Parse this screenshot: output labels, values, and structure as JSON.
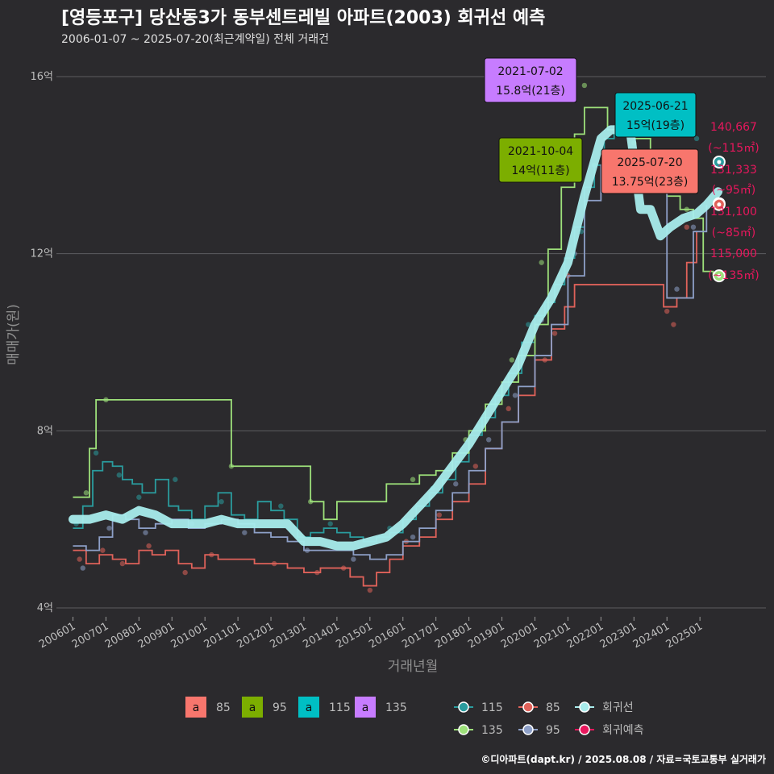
{
  "title": "[영등포구] 당산동3가 동부센트레빌 아파트(2003) 회귀선 예측",
  "subtitle": "2006-01-07 ~ 2025-07-20(최근계약일) 전체 거래건",
  "footer": "©디아파트(dapt.kr) / 2025.08.08 / 자료=국토교통부 실거래가",
  "colors": {
    "background": "#2b2a2d",
    "grid": "#5c5c60",
    "s85": "#f8766d",
    "s95": "#7cae00",
    "s115": "#00bfc4",
    "s135": "#c77cff",
    "l115": "#2a9c9e",
    "l135": "#9de07a",
    "l85": "#e0625a",
    "l95": "#8ea0c8",
    "regression": "#a8ecec",
    "forecast": "#e8175d"
  },
  "chart_data": {
    "type": "line",
    "title": "[영등포구] 당산동3가 동부센트레빌 아파트(2003) 회귀선 예측",
    "xlabel": "거래년월",
    "ylabel": "매매가(원)",
    "xlim": [
      2005.5,
      2027.0
    ],
    "ylim": [
      3.8,
      16.6
    ],
    "y_unit": "억",
    "y_ticks": [
      4,
      8,
      12,
      16
    ],
    "y_tick_labels": [
      "4억",
      "8억",
      "12억",
      "16억"
    ],
    "x_tick_values": [
      2006,
      2007,
      2008,
      2009,
      2010,
      2011,
      2012,
      2013,
      2014,
      2015,
      2016,
      2017,
      2018,
      2019,
      2020,
      2021,
      2022,
      2023,
      2024,
      2025
    ],
    "x_tick_labels": [
      "200601",
      "200701",
      "200801",
      "200901",
      "201001",
      "201101",
      "201201",
      "201301",
      "201401",
      "201501",
      "201601",
      "201701",
      "201801",
      "201901",
      "202001",
      "202101",
      "202201",
      "202301",
      "202401",
      "202501"
    ],
    "series": [
      {
        "name": "115",
        "key": "l115",
        "x": [
          2006.0,
          2006.3,
          2006.6,
          2006.9,
          2007.2,
          2007.5,
          2007.8,
          2008.1,
          2008.5,
          2008.9,
          2009.2,
          2009.6,
          2010.0,
          2010.4,
          2010.8,
          2011.2,
          2011.6,
          2012.0,
          2012.4,
          2012.8,
          2013.2,
          2013.6,
          2014.0,
          2014.4,
          2014.8,
          2015.2,
          2015.6,
          2016.0,
          2016.4,
          2016.8,
          2017.2,
          2017.6,
          2018.0,
          2018.4,
          2018.8,
          2019.2,
          2019.6,
          2020.0,
          2020.3,
          2020.6,
          2020.9,
          2021.2,
          2021.5,
          2021.8,
          2022.1,
          2022.4
        ],
        "y": [
          5.8,
          6.3,
          7.1,
          7.3,
          7.2,
          6.9,
          6.8,
          6.6,
          6.9,
          6.3,
          6.2,
          6.0,
          6.3,
          6.6,
          6.1,
          6.0,
          6.4,
          6.2,
          6.0,
          5.6,
          5.7,
          5.8,
          5.7,
          5.6,
          5.5,
          5.6,
          5.7,
          6.0,
          6.3,
          6.6,
          6.9,
          7.3,
          7.9,
          8.3,
          8.8,
          9.3,
          10.0,
          10.6,
          10.9,
          11.3,
          11.9,
          12.6,
          13.5,
          14.0,
          14.6,
          14.9
        ]
      },
      {
        "name": "135",
        "key": "l135",
        "x": [
          2006.0,
          2006.3,
          2006.5,
          2006.7,
          2007.0,
          2010.8,
          2011.3,
          2013.2,
          2013.6,
          2014.0,
          2015.5,
          2016.0,
          2016.5,
          2017.0,
          2017.5,
          2018.0,
          2018.5,
          2019.0,
          2019.5,
          2020.0,
          2020.4,
          2020.8,
          2021.2,
          2021.5,
          2021.8,
          2022.2,
          2023.0,
          2023.5,
          2024.0,
          2024.4,
          2024.8,
          2025.1,
          2025.4
        ],
        "y": [
          6.5,
          6.5,
          7.6,
          8.7,
          8.7,
          7.2,
          7.2,
          6.4,
          6.0,
          6.4,
          6.8,
          6.8,
          7.0,
          7.1,
          7.5,
          8.0,
          8.6,
          9.1,
          9.7,
          10.4,
          12.1,
          13.5,
          14.7,
          15.3,
          15.3,
          14.8,
          14.6,
          14.2,
          13.3,
          13.0,
          12.8,
          11.6,
          11.5
        ]
      },
      {
        "name": "85",
        "key": "l85",
        "x": [
          2006.0,
          2006.4,
          2006.8,
          2007.2,
          2007.6,
          2008.0,
          2008.4,
          2008.8,
          2009.2,
          2009.6,
          2010.0,
          2010.4,
          2011.0,
          2011.5,
          2012.0,
          2012.5,
          2013.0,
          2013.5,
          2014.0,
          2014.4,
          2014.8,
          2015.2,
          2015.6,
          2016.0,
          2016.5,
          2017.0,
          2017.5,
          2018.0,
          2018.5,
          2019.0,
          2019.5,
          2020.0,
          2020.5,
          2020.9,
          2021.2,
          2023.9,
          2024.3,
          2024.6,
          2024.9
        ],
        "y": [
          5.3,
          5.0,
          5.2,
          5.1,
          5.0,
          5.3,
          5.2,
          5.3,
          5.0,
          4.9,
          5.2,
          5.1,
          5.1,
          5.0,
          5.0,
          4.9,
          4.8,
          4.9,
          4.9,
          4.7,
          4.5,
          4.8,
          5.1,
          5.4,
          5.6,
          6.0,
          6.4,
          6.8,
          7.6,
          8.2,
          8.8,
          9.6,
          10.3,
          10.8,
          11.3,
          10.8,
          11.0,
          11.8,
          12.5
        ]
      },
      {
        "name": "95",
        "key": "l95",
        "x": [
          2006.0,
          2006.4,
          2006.8,
          2007.2,
          2007.6,
          2008.0,
          2008.5,
          2009.0,
          2009.5,
          2010.0,
          2010.5,
          2011.0,
          2011.5,
          2012.0,
          2012.5,
          2013.0,
          2013.5,
          2014.0,
          2014.5,
          2015.0,
          2015.5,
          2016.0,
          2016.5,
          2017.0,
          2017.5,
          2018.0,
          2018.5,
          2019.0,
          2019.5,
          2020.0,
          2020.5,
          2021.0,
          2021.5,
          2022.0,
          2023.0,
          2024.0,
          2024.4,
          2024.8,
          2025.2
        ],
        "y": [
          5.4,
          5.3,
          5.6,
          6.1,
          6.0,
          5.8,
          5.9,
          6.0,
          5.8,
          5.9,
          6.0,
          5.9,
          5.7,
          5.6,
          5.5,
          5.3,
          5.3,
          5.3,
          5.2,
          5.1,
          5.2,
          5.5,
          5.8,
          6.2,
          6.6,
          7.1,
          7.6,
          8.2,
          9.0,
          9.7,
          10.4,
          11.5,
          13.2,
          14.0,
          14.2,
          11.0,
          11.0,
          12.5,
          13.1
        ]
      },
      {
        "name": "회귀선",
        "key": "regression",
        "x": [
          2006.0,
          2006.5,
          2007.0,
          2007.5,
          2008.0,
          2008.5,
          2009.0,
          2009.5,
          2010.0,
          2010.5,
          2011.0,
          2011.5,
          2012.0,
          2012.5,
          2013.0,
          2013.5,
          2014.0,
          2014.5,
          2015.0,
          2015.5,
          2016.0,
          2016.5,
          2017.0,
          2017.5,
          2018.0,
          2018.5,
          2019.0,
          2019.5,
          2020.0,
          2020.5,
          2021.0,
          2021.5,
          2022.0,
          2022.3,
          2022.6,
          2022.9,
          2023.2,
          2023.5,
          2023.8,
          2024.1,
          2024.5,
          2024.9,
          2025.2,
          2025.55
        ],
        "y": [
          6.0,
          6.0,
          6.1,
          6.0,
          6.2,
          6.1,
          5.9,
          5.9,
          5.9,
          6.0,
          5.9,
          5.9,
          5.9,
          5.9,
          5.5,
          5.5,
          5.4,
          5.4,
          5.5,
          5.6,
          5.9,
          6.3,
          6.7,
          7.2,
          7.7,
          8.3,
          8.9,
          9.5,
          10.4,
          11.0,
          11.8,
          13.3,
          14.6,
          14.8,
          14.8,
          14.7,
          13.0,
          13.0,
          12.4,
          12.6,
          12.8,
          12.9,
          13.1,
          13.4
        ]
      }
    ],
    "scatter_points": {
      "85": [
        [
          2006.2,
          5.1
        ],
        [
          2006.9,
          5.3
        ],
        [
          2007.5,
          5.0
        ],
        [
          2008.3,
          5.4
        ],
        [
          2009.4,
          4.8
        ],
        [
          2010.2,
          5.2
        ],
        [
          2012.1,
          5.0
        ],
        [
          2013.4,
          4.8
        ],
        [
          2014.2,
          4.9
        ],
        [
          2015.0,
          4.4
        ],
        [
          2016.1,
          5.5
        ],
        [
          2017.1,
          6.1
        ],
        [
          2018.2,
          7.2
        ],
        [
          2019.2,
          8.5
        ],
        [
          2020.3,
          9.6
        ],
        [
          2020.6,
          10.2
        ],
        [
          2021.0,
          11.5
        ],
        [
          2024.0,
          10.7
        ],
        [
          2024.2,
          10.4
        ],
        [
          2024.6,
          12.6
        ]
      ],
      "95": [
        [
          2006.3,
          4.9
        ],
        [
          2007.1,
          5.8
        ],
        [
          2008.2,
          5.7
        ],
        [
          2009.6,
          5.9
        ],
        [
          2011.2,
          5.7
        ],
        [
          2013.1,
          5.3
        ],
        [
          2014.5,
          5.1
        ],
        [
          2016.3,
          5.6
        ],
        [
          2017.6,
          6.8
        ],
        [
          2018.6,
          7.8
        ],
        [
          2019.4,
          8.8
        ],
        [
          2020.2,
          10.5
        ],
        [
          2021.2,
          12.0
        ],
        [
          2024.3,
          11.2
        ],
        [
          2024.8,
          12.6
        ]
      ],
      "115": [
        [
          2006.1,
          5.9
        ],
        [
          2006.7,
          7.5
        ],
        [
          2007.4,
          7.0
        ],
        [
          2008.0,
          6.5
        ],
        [
          2009.1,
          6.9
        ],
        [
          2010.5,
          6.4
        ],
        [
          2012.3,
          6.3
        ],
        [
          2013.8,
          5.9
        ],
        [
          2015.6,
          5.8
        ],
        [
          2016.9,
          6.7
        ],
        [
          2018.3,
          8.1
        ],
        [
          2019.8,
          10.4
        ],
        [
          2020.8,
          11.4
        ],
        [
          2021.4,
          12.5
        ],
        [
          2024.9,
          14.6
        ]
      ],
      "135": [
        [
          2006.4,
          6.6
        ],
        [
          2007.0,
          8.7
        ],
        [
          2010.8,
          7.2
        ],
        [
          2013.2,
          6.4
        ],
        [
          2016.3,
          6.9
        ],
        [
          2017.9,
          7.8
        ],
        [
          2019.3,
          9.6
        ],
        [
          2020.2,
          11.8
        ],
        [
          2021.5,
          15.8
        ],
        [
          2021.8,
          14.0
        ],
        [
          2023.0,
          14.5
        ],
        [
          2024.6,
          13.0
        ]
      ]
    },
    "forecast_markers": [
      {
        "size": "115",
        "x": 2025.58,
        "y": 14.07
      },
      {
        "size": "95",
        "x": 2025.58,
        "y": 13.13
      },
      {
        "size": "85",
        "x": 2025.58,
        "y": 13.11
      },
      {
        "size": "135",
        "x": 2025.58,
        "y": 11.5
      }
    ],
    "callouts": [
      {
        "date": "2021-07-02",
        "price": "15.8억(21층)",
        "color_key": "s135",
        "x": 2021.5,
        "y": 15.8
      },
      {
        "date": "2025-06-21",
        "price": "15억(19층)",
        "color_key": "s115",
        "x": 2025.47,
        "y": 15.0
      },
      {
        "date": "2021-10-04",
        "price": "14억(11층)",
        "color_key": "s95",
        "x": 2021.76,
        "y": 14.0
      },
      {
        "date": "2025-07-20",
        "price": "13.75억(23층)",
        "color_key": "s85",
        "x": 2025.55,
        "y": 13.75
      }
    ],
    "forecast_labels": [
      {
        "value": "140,667",
        "area": "(~115㎡)"
      },
      {
        "value": "131,333",
        "area": "(~95㎡)"
      },
      {
        "value": "131,100",
        "area": "(~85㎡)"
      },
      {
        "value": "115,000",
        "area": "(~135㎡)"
      }
    ]
  },
  "legend": {
    "fill_items": [
      {
        "glyph": "a",
        "label": "85",
        "color_key": "s85"
      },
      {
        "glyph": "a",
        "label": "95",
        "color_key": "s95"
      },
      {
        "glyph": "a",
        "label": "115",
        "color_key": "s115"
      },
      {
        "glyph": "a",
        "label": "135",
        "color_key": "s135"
      }
    ],
    "line_items": [
      {
        "label": "115",
        "color_key": "l115"
      },
      {
        "label": "85",
        "color_key": "l85"
      },
      {
        "label": "회귀선",
        "color_key": "regression"
      },
      {
        "label": "135",
        "color_key": "l135"
      },
      {
        "label": "95",
        "color_key": "l95"
      },
      {
        "label": "회귀예측",
        "color_key": "forecast"
      }
    ]
  }
}
